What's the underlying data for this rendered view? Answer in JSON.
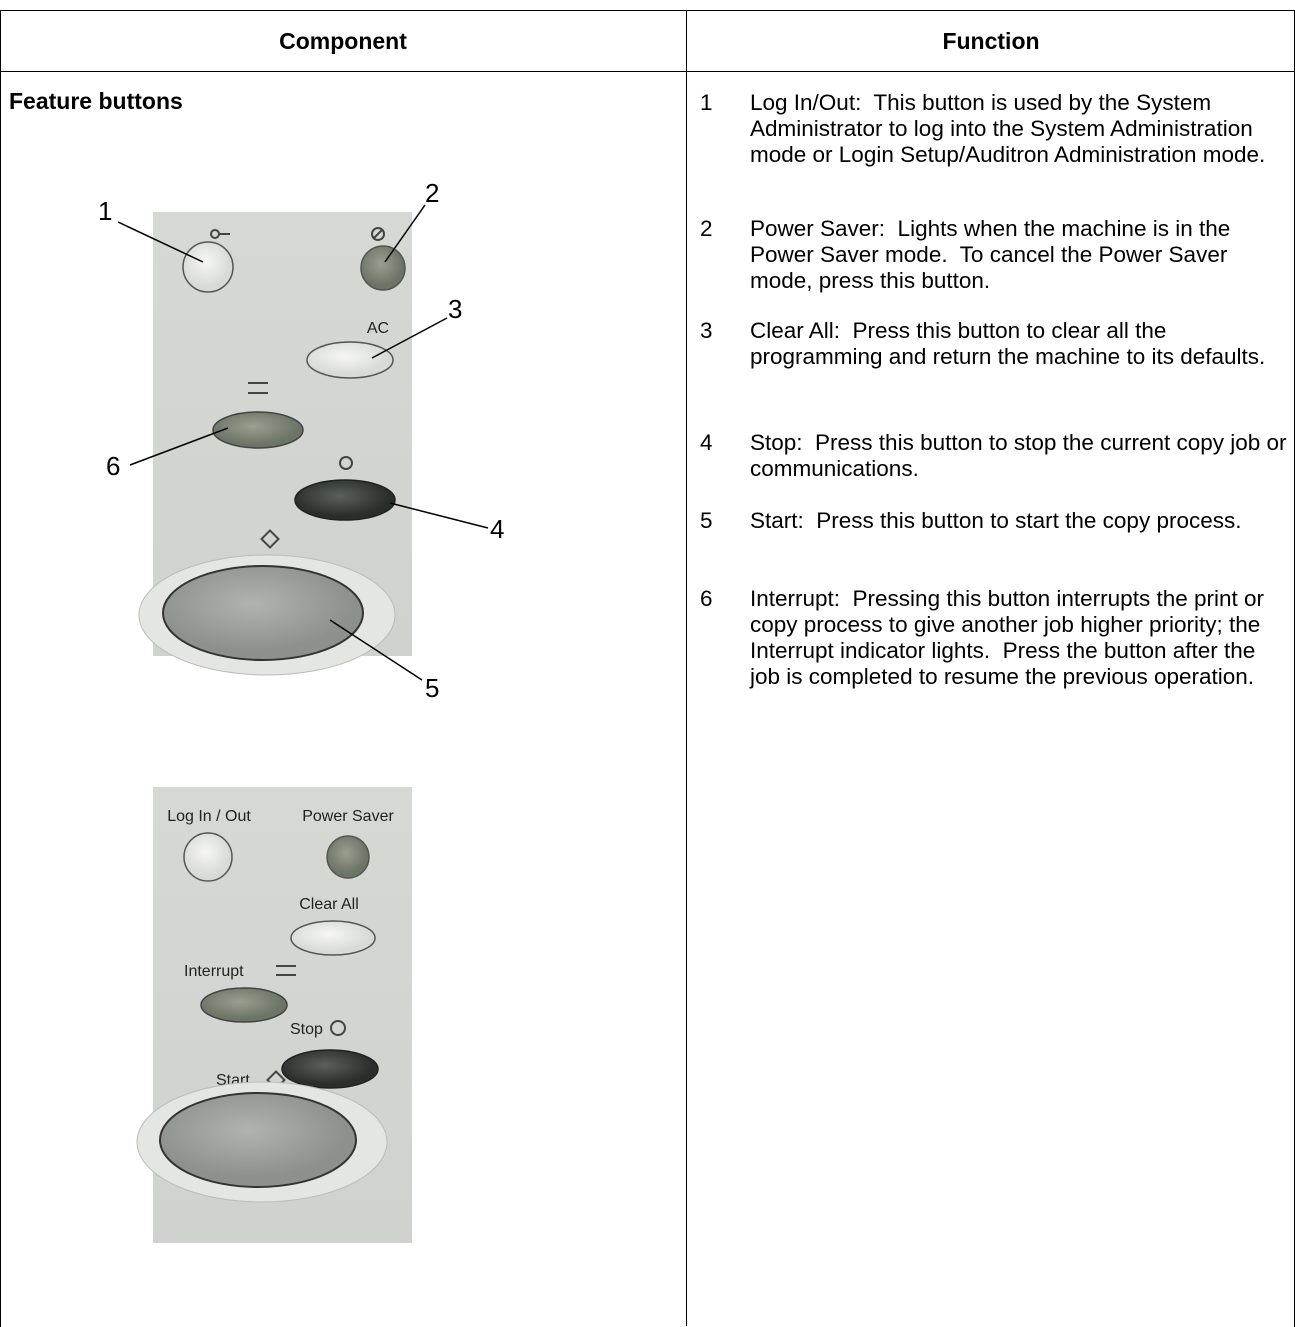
{
  "table": {
    "header": [
      "Component",
      "Function"
    ],
    "rows": [
      {
        "component": "Feature buttons",
        "figure_callouts": [
          "1",
          "2",
          "3",
          "4",
          "5",
          "6"
        ],
        "panel_marking": "AC",
        "panel_labels": [
          "Log In / Out",
          "Power Saver",
          "Clear All",
          "Interrupt",
          "Stop",
          "Start"
        ],
        "functions": [
          {
            "number": "1",
            "text": "Log In/Out:  This button is used by the System Administrator to log into the System Administration mode or Login Setup/Auditron Administration mode."
          },
          {
            "number": "2",
            "text": "Power Saver:  Lights when the machine is in the Power Saver mode.  To cancel the Power Saver mode, press this button."
          },
          {
            "number": "3",
            "text": "Clear All:  Press this button to clear all the programming and return the machine to its defaults."
          },
          {
            "number": "4",
            "text": "Stop:  Press this button to stop the current copy job or communications."
          },
          {
            "number": "5",
            "text": "Start:  Press this button to start the copy process."
          },
          {
            "number": "6",
            "text": "Interrupt:  Pressing this button interrupts the print or copy process to give another job higher priority; the Interrupt indicator lights.  Press the button after the job is completed to resume the previous operation."
          }
        ]
      }
    ]
  }
}
